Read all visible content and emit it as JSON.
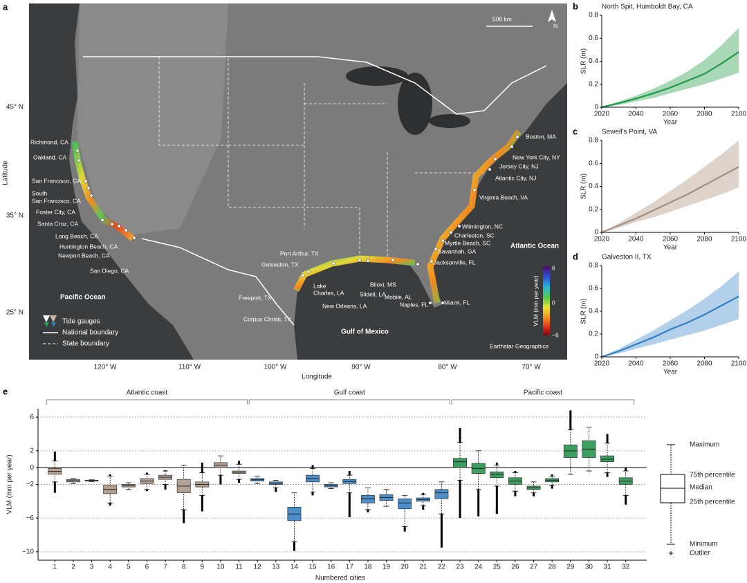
{
  "map": {
    "panel": "a",
    "scale": "500 km",
    "north": "N",
    "xlabel": "Longitude",
    "ylabel": "Latitude",
    "lat_labels": [
      "45° N",
      "35° N",
      "25° N"
    ],
    "lon_labels": [
      "120° W",
      "110° W",
      "100° W",
      "90° W",
      "80° W",
      "70° W"
    ],
    "oceans": [
      "Pacific Ocean",
      "Atlantic Ocean",
      "Gulf of Mexico"
    ],
    "credit": "Earthstar Geographics",
    "legend": [
      "Tide gauges",
      "National boundary",
      "State boundary"
    ],
    "colorbar_label": "VLM (mm per year)",
    "colorbar_ticks": [
      "6",
      "0",
      "−6"
    ],
    "cities": [
      "Richmond, CA",
      "Oakland, CA",
      "San Francisco, CA",
      "South",
      "San Francisco, CA",
      "Foster City, CA",
      "Santa Cruz, CA",
      "Long Beach, CA",
      "Huntington Beach, CA",
      "Newport Beach, CA",
      "San Diego, CA",
      "Port Arthur, TX",
      "Galveston, TX",
      "Freeport, TX",
      "Corpus Christi, TX",
      "Lake",
      "Charles, LA",
      "New Orleans, LA",
      "Slidell, LA",
      "Biloxi, MS",
      "Mobile, AL",
      "Naples, FL",
      "Miami, FL",
      "Jacksonville, FL",
      "Savannah, GA",
      "Myrtle Beach, SC",
      "Charleston, SC",
      "Wilmington, NC",
      "Virginia Beach, VA",
      "Atlantic City, NJ",
      "Jersey City, NJ",
      "New York City, NY",
      "Boston, MA"
    ]
  },
  "chart_data": [
    {
      "type": "line",
      "panel": "b",
      "title": "North Spit, Humboldt Bay, CA",
      "xlabel": "Year",
      "ylabel": "SLR (m)",
      "x": [
        2020,
        2030,
        2040,
        2050,
        2060,
        2070,
        2080,
        2090,
        2100
      ],
      "values": [
        0,
        0.035,
        0.075,
        0.12,
        0.17,
        0.23,
        0.29,
        0.38,
        0.48
      ],
      "band_upper": [
        0,
        0.05,
        0.1,
        0.16,
        0.23,
        0.31,
        0.41,
        0.54,
        0.69
      ],
      "band_lower": [
        0,
        0.02,
        0.05,
        0.08,
        0.12,
        0.16,
        0.2,
        0.25,
        0.3
      ],
      "color": "#1f9a4b",
      "band_color": "#a8d8b6",
      "xlim": [
        2020,
        2100
      ],
      "xticks": [
        2020,
        2040,
        2060,
        2080,
        2100
      ],
      "ylim": [
        0,
        0.8
      ],
      "yticks": [
        0,
        0.2,
        0.4,
        0.6,
        0.8
      ]
    },
    {
      "type": "line",
      "panel": "c",
      "title": "Sewell’s Point, VA",
      "xlabel": "Year",
      "ylabel": "SLR (m)",
      "x": [
        2020,
        2030,
        2040,
        2050,
        2060,
        2070,
        2080,
        2090,
        2100
      ],
      "values": [
        0,
        0.06,
        0.12,
        0.19,
        0.26,
        0.33,
        0.41,
        0.49,
        0.57
      ],
      "band_upper": [
        0,
        0.08,
        0.17,
        0.26,
        0.36,
        0.46,
        0.57,
        0.68,
        0.8
      ],
      "band_lower": [
        0,
        0.04,
        0.09,
        0.13,
        0.18,
        0.23,
        0.28,
        0.33,
        0.39
      ],
      "color": "#a28f80",
      "band_color": "#ddd3cb",
      "xlim": [
        2020,
        2100
      ],
      "xticks": [
        2020,
        2040,
        2060,
        2080,
        2100
      ],
      "ylim": [
        0,
        0.8
      ],
      "yticks": [
        0,
        0.2,
        0.4,
        0.6,
        0.8
      ]
    },
    {
      "type": "line",
      "panel": "d",
      "title": "Galveston II, TX",
      "xlabel": "Year",
      "ylabel": "SLR (m)",
      "x": [
        2020,
        2030,
        2040,
        2050,
        2060,
        2070,
        2080,
        2090,
        2100
      ],
      "values": [
        0,
        0.05,
        0.11,
        0.17,
        0.24,
        0.3,
        0.37,
        0.45,
        0.53
      ],
      "band_upper": [
        0,
        0.07,
        0.15,
        0.23,
        0.32,
        0.41,
        0.51,
        0.62,
        0.75
      ],
      "band_lower": [
        0,
        0.03,
        0.07,
        0.11,
        0.15,
        0.19,
        0.23,
        0.28,
        0.33
      ],
      "color": "#2f7fc1",
      "band_color": "#b3d0ea",
      "xlim": [
        2020,
        2100
      ],
      "xticks": [
        2020,
        2040,
        2060,
        2080,
        2100
      ],
      "ylim": [
        0,
        0.8
      ],
      "yticks": [
        0,
        0.2,
        0.4,
        0.6,
        0.8
      ]
    },
    {
      "type": "box",
      "panel": "e",
      "xlabel": "Numbered cities",
      "ylabel": "VLM (mm per year)",
      "ylim": [
        -11,
        7
      ],
      "yticks": [
        6,
        2,
        0,
        {
          "value": -2,
          "label": "−2"
        },
        {
          "value": -6,
          "label": "−6"
        },
        {
          "value": -10,
          "label": "−10"
        }
      ],
      "grid": true,
      "box_key": [
        "Maximum",
        "75th percentile",
        "Median",
        "25th percentile",
        "Minimum",
        "Outlier"
      ],
      "series": [
        {
          "name": "Atlantic coast",
          "color": "#b3a193",
          "categories": [
            "1",
            "2",
            "3",
            "4",
            "5",
            "6",
            "7",
            "8",
            "9",
            "10",
            "11"
          ],
          "min": [
            -1.7,
            -1.9,
            -1.65,
            -4.2,
            -2.6,
            -2.6,
            -2.0,
            -5.0,
            -3.3,
            -0.9,
            -1.4
          ],
          "q1": [
            -0.8,
            -1.7,
            -1.6,
            -3.1,
            -2.3,
            -1.9,
            -1.4,
            -3.0,
            -2.3,
            0.0,
            -0.7
          ],
          "median": [
            -0.45,
            -1.55,
            -1.55,
            -2.6,
            -2.15,
            -1.6,
            -1.15,
            -2.2,
            -2.0,
            0.3,
            -0.55
          ],
          "q3": [
            -0.1,
            -1.4,
            -1.5,
            -2.1,
            -2.0,
            -1.3,
            -0.9,
            -1.4,
            -1.7,
            0.6,
            -0.4
          ],
          "max": [
            0.8,
            -1.3,
            -1.45,
            -1.0,
            -1.8,
            -0.8,
            -0.4,
            0.3,
            -0.6,
            1.4,
            0.4
          ],
          "outlier_min": [
            -3.0,
            null,
            null,
            -4.5,
            null,
            -2.8,
            -2.6,
            -6.6,
            -5.2,
            -2.0,
            -1.8
          ],
          "outlier_max": [
            1.9,
            null,
            null,
            -0.8,
            null,
            -0.6,
            -0.3,
            null,
            0.6,
            null,
            0.8
          ]
        },
        {
          "name": "Gulf coast",
          "color": "#4a8fcb",
          "categories": [
            "12",
            "13",
            "14",
            "15",
            "16",
            "17",
            "18",
            "19",
            "20",
            "21",
            "22"
          ],
          "min": [
            -1.9,
            -2.4,
            -8.8,
            -2.9,
            -2.5,
            -3.0,
            -5.0,
            -4.6,
            -7.0,
            -4.5,
            -5.5
          ],
          "q1": [
            -1.6,
            -2.0,
            -6.3,
            -1.7,
            -2.3,
            -1.9,
            -4.2,
            -3.9,
            -4.9,
            -4.0,
            -3.7
          ],
          "median": [
            -1.45,
            -1.85,
            -5.5,
            -1.3,
            -2.15,
            -1.65,
            -3.7,
            -3.55,
            -4.2,
            -3.8,
            -3.0
          ],
          "q3": [
            -1.3,
            -1.7,
            -4.7,
            -0.9,
            -2.0,
            -1.4,
            -3.3,
            -3.2,
            -3.7,
            -3.6,
            -2.6
          ],
          "max": [
            -1.0,
            -1.5,
            -3.0,
            -0.1,
            -1.8,
            -0.9,
            -2.4,
            -2.6,
            -3.3,
            -3.2,
            -1.7
          ],
          "outlier_min": [
            null,
            -2.9,
            -9.9,
            -3.3,
            null,
            -5.9,
            -5.3,
            null,
            -7.6,
            -5.0,
            -9.5
          ],
          "outlier_max": [
            null,
            null,
            null,
            0.3,
            null,
            -0.4,
            null,
            null,
            null,
            -3.0,
            null
          ]
        },
        {
          "name": "Pacific coast",
          "color": "#3c9e5f",
          "categories": [
            "23",
            "24",
            "25",
            "26",
            "27",
            "28",
            "29",
            "30",
            "31",
            "32"
          ],
          "min": [
            -1.5,
            -2.6,
            -2.2,
            -2.8,
            -3.0,
            -2.1,
            -0.8,
            -0.4,
            -0.6,
            -3.3
          ],
          "q1": [
            0.0,
            -0.7,
            -1.2,
            -2.0,
            -2.6,
            -1.7,
            1.2,
            1.2,
            0.7,
            -2.0
          ],
          "median": [
            0.7,
            -0.1,
            -0.8,
            -1.6,
            -2.4,
            -1.5,
            2.0,
            2.2,
            1.0,
            -1.6
          ],
          "q3": [
            1.1,
            0.5,
            -0.5,
            -1.2,
            -2.2,
            -1.3,
            2.7,
            3.2,
            1.4,
            -1.2
          ],
          "max": [
            3.0,
            2.0,
            0.3,
            -0.6,
            -1.7,
            -1.0,
            4.5,
            4.8,
            2.9,
            -0.4
          ],
          "outlier_min": [
            -6.0,
            -5.8,
            -5.5,
            -3.4,
            -3.4,
            -2.5,
            null,
            null,
            -1.1,
            -4.4
          ],
          "outlier_max": [
            4.7,
            null,
            0.6,
            -0.4,
            null,
            -0.8,
            6.8,
            null,
            4.0,
            0.0
          ]
        }
      ]
    }
  ]
}
